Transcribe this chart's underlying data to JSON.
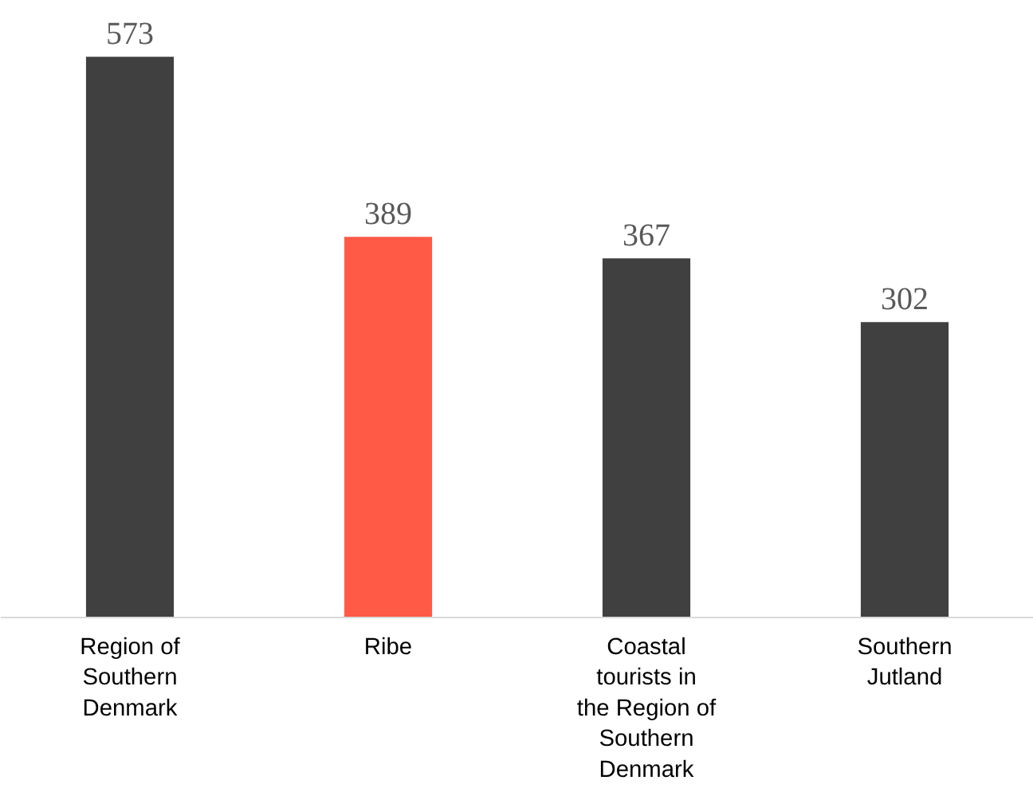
{
  "chart_data": {
    "type": "bar",
    "categories": [
      "Region of Southern Denmark",
      "Ribe",
      "Coastal tourists in the Region of Southern Denmark",
      "Southern Jutland"
    ],
    "values": [
      573,
      389,
      367,
      302
    ],
    "colors": [
      "#404040",
      "#ff5a45",
      "#404040",
      "#404040"
    ],
    "data_labels": true
  }
}
